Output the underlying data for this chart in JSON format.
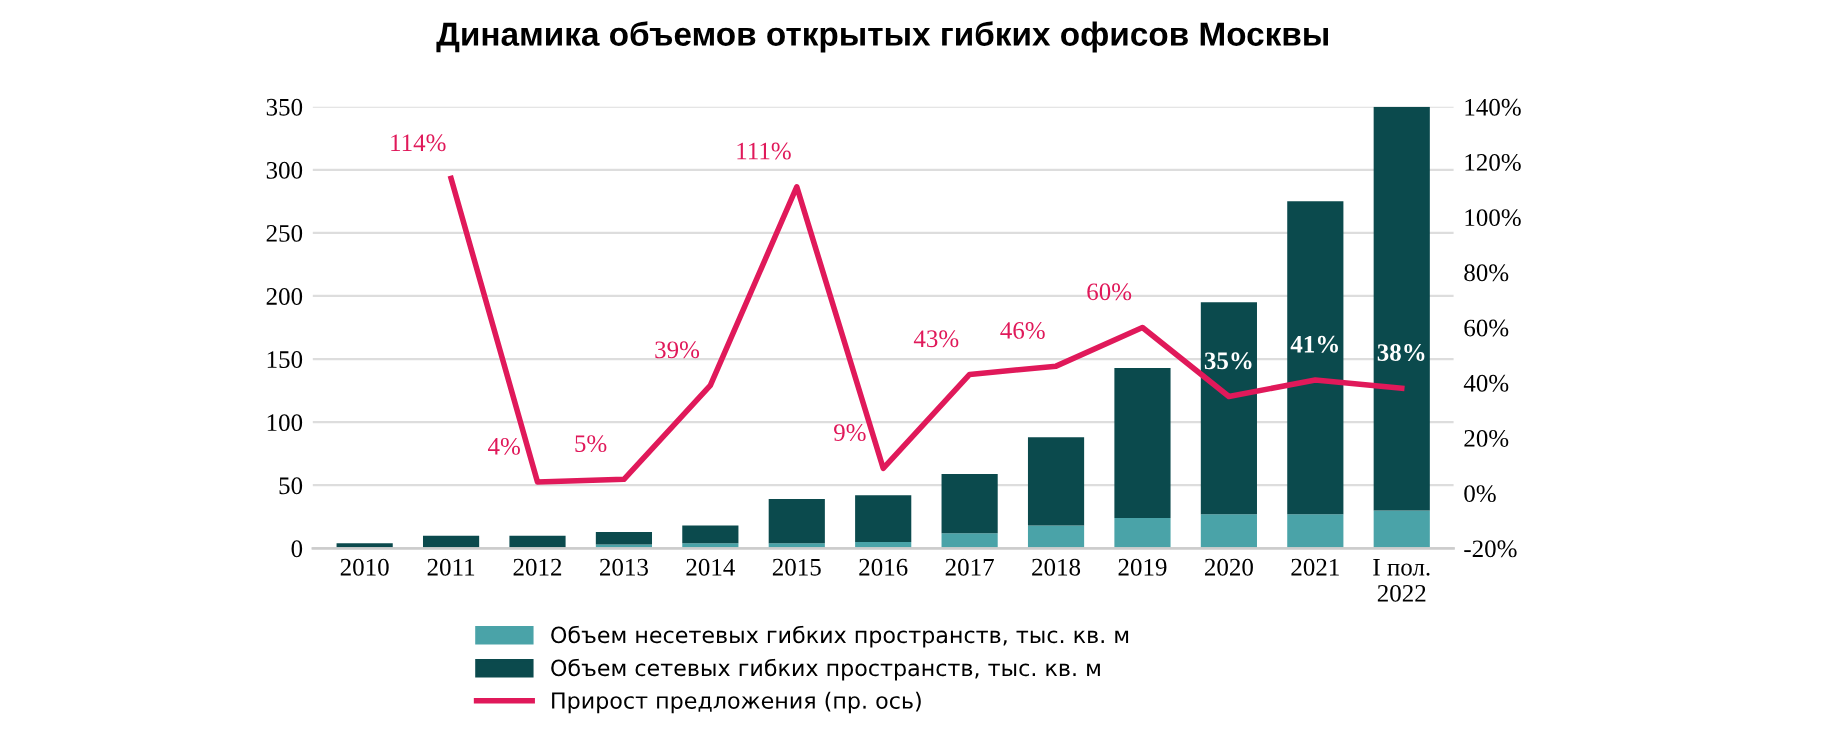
{
  "chart_data": {
    "type": "bar",
    "title": "Динамика объемов открытых гибких офисов Москвы",
    "stacked": true,
    "categories": [
      "2010",
      "2011",
      "2012",
      "2013",
      "2014",
      "2015",
      "2016",
      "2017",
      "2018",
      "2019",
      "2020",
      "2021",
      "I пол.\n2022"
    ],
    "series": [
      {
        "name": "Объем несетевых гибких пространств, тыс. кв. м",
        "color": "#4aa3a8",
        "values": [
          null,
          null,
          null,
          3,
          4,
          4,
          5,
          12,
          18,
          24,
          27,
          27,
          30
        ]
      },
      {
        "name": "Объем сетевых гибких пространств, тыс. кв. м",
        "color": "#0b4a4d",
        "values": [
          4,
          10,
          10,
          10,
          14,
          35,
          37,
          47,
          70,
          119,
          168,
          248,
          320
        ]
      },
      {
        "name": "Прирост предложения (пр. ось)",
        "type": "line",
        "axis": "y2",
        "color": "#e0195a",
        "line_style": "solid",
        "marker": "none",
        "values": [
          null,
          114,
          4,
          5,
          39,
          111,
          9,
          43,
          46,
          60,
          35,
          41,
          38
        ],
        "value_labels": [
          null,
          "114%",
          "4%",
          "5%",
          "39%",
          "111%",
          "9%",
          "43%",
          "46%",
          "60%",
          "35%",
          "41%",
          "38%"
        ]
      }
    ],
    "ylim": [
      0,
      350
    ],
    "yticks": [
      0,
      50,
      100,
      150,
      200,
      250,
      300,
      350
    ],
    "y2lim": [
      -20,
      140
    ],
    "y2ticks": [
      {
        "value": -20,
        "label": "-20%"
      },
      {
        "value": 0,
        "label": "0%"
      },
      {
        "value": 20,
        "label": "20%"
      },
      {
        "value": 40,
        "label": "40%"
      },
      {
        "value": 60,
        "label": "60%"
      },
      {
        "value": 80,
        "label": "80%"
      },
      {
        "value": 100,
        "label": "100%"
      },
      {
        "value": 120,
        "label": "120%"
      },
      {
        "value": 140,
        "label": "140%"
      }
    ],
    "grid": "y",
    "legend": "bottom"
  }
}
